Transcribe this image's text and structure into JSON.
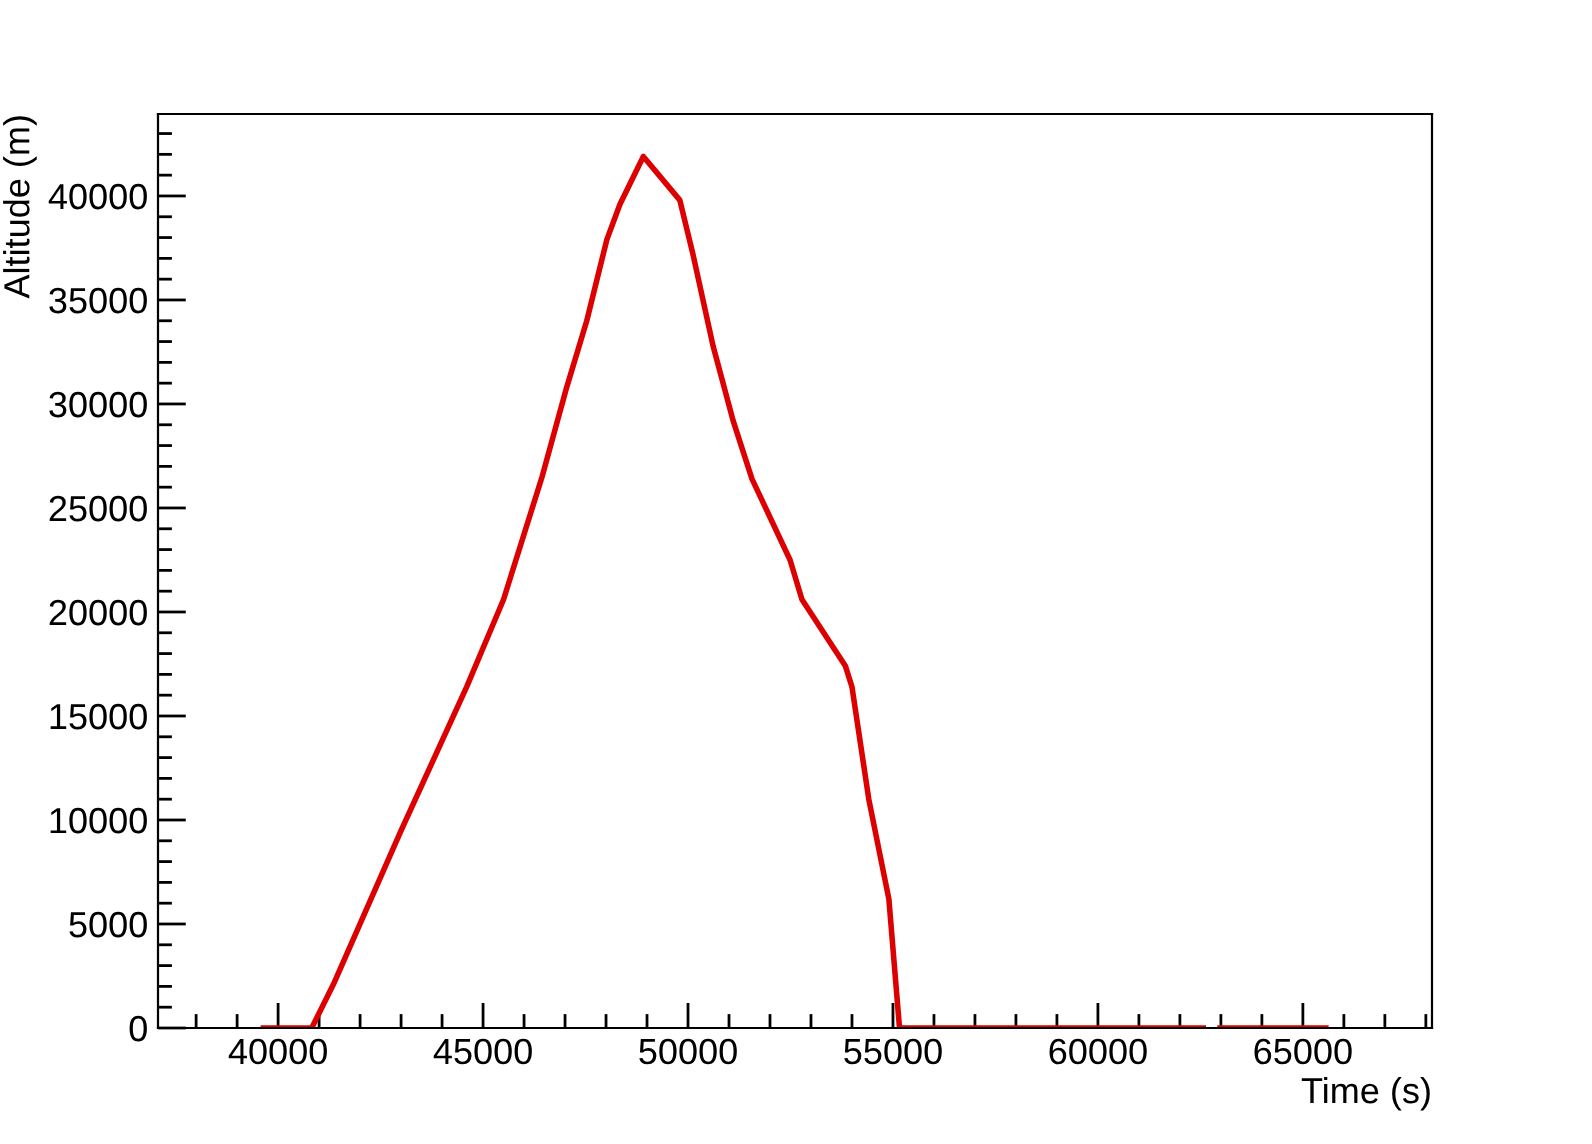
{
  "chart_data": {
    "type": "line",
    "xlabel": "Time (s)",
    "ylabel": "Altitude (m)",
    "x": [
      39640,
      40820,
      41350,
      42980,
      44600,
      45500,
      46440,
      47040,
      47530,
      48020,
      48340,
      48910,
      49800,
      50120,
      50610,
      51100,
      51560,
      52490,
      52780,
      53840,
      54000,
      54410,
      54900,
      55160,
      62570,
      62700,
      62980,
      65560
    ],
    "series": [
      {
        "color": "#dd0000",
        "values": [
          0,
          0,
          2100,
          9400,
          16400,
          20600,
          26500,
          30800,
          34000,
          37900,
          39600,
          41900,
          39800,
          37200,
          32800,
          29200,
          26400,
          22500,
          20600,
          17400,
          16400,
          11000,
          6200,
          0,
          0,
          null,
          0,
          0
        ]
      }
    ],
    "xlim": [
      37070,
      68150
    ],
    "ylim": [
      0,
      43940
    ],
    "xticks": [
      {
        "value": 38000,
        "label": null
      },
      {
        "value": 39000,
        "label": null
      },
      40000,
      {
        "value": 41000,
        "label": null
      },
      {
        "value": 42000,
        "label": null
      },
      {
        "value": 43000,
        "label": null
      },
      {
        "value": 44000,
        "label": null
      },
      45000,
      {
        "value": 46000,
        "label": null
      },
      {
        "value": 47000,
        "label": null
      },
      {
        "value": 48000,
        "label": null
      },
      {
        "value": 49000,
        "label": null
      },
      50000,
      {
        "value": 51000,
        "label": null
      },
      {
        "value": 52000,
        "label": null
      },
      {
        "value": 53000,
        "label": null
      },
      {
        "value": 54000,
        "label": null
      },
      55000,
      {
        "value": 56000,
        "label": null
      },
      {
        "value": 57000,
        "label": null
      },
      {
        "value": 58000,
        "label": null
      },
      {
        "value": 59000,
        "label": null
      },
      60000,
      {
        "value": 61000,
        "label": null
      },
      {
        "value": 62000,
        "label": null
      },
      {
        "value": 63000,
        "label": null
      },
      {
        "value": 64000,
        "label": null
      },
      65000,
      {
        "value": 66000,
        "label": null
      },
      {
        "value": 67000,
        "label": null
      },
      {
        "value": 68000,
        "label": null
      }
    ],
    "yticks": [
      0,
      {
        "value": 1000,
        "label": null
      },
      {
        "value": 2000,
        "label": null
      },
      {
        "value": 3000,
        "label": null
      },
      {
        "value": 4000,
        "label": null
      },
      5000,
      {
        "value": 6000,
        "label": null
      },
      {
        "value": 7000,
        "label": null
      },
      {
        "value": 8000,
        "label": null
      },
      {
        "value": 9000,
        "label": null
      },
      10000,
      {
        "value": 11000,
        "label": null
      },
      {
        "value": 12000,
        "label": null
      },
      {
        "value": 13000,
        "label": null
      },
      {
        "value": 14000,
        "label": null
      },
      15000,
      {
        "value": 16000,
        "label": null
      },
      {
        "value": 17000,
        "label": null
      },
      {
        "value": 18000,
        "label": null
      },
      {
        "value": 19000,
        "label": null
      },
      20000,
      {
        "value": 21000,
        "label": null
      },
      {
        "value": 22000,
        "label": null
      },
      {
        "value": 23000,
        "label": null
      },
      {
        "value": 24000,
        "label": null
      },
      25000,
      {
        "value": 26000,
        "label": null
      },
      {
        "value": 27000,
        "label": null
      },
      {
        "value": 28000,
        "label": null
      },
      {
        "value": 29000,
        "label": null
      },
      30000,
      {
        "value": 31000,
        "label": null
      },
      {
        "value": 32000,
        "label": null
      },
      {
        "value": 33000,
        "label": null
      },
      {
        "value": 34000,
        "label": null
      },
      35000,
      {
        "value": 36000,
        "label": null
      },
      {
        "value": 37000,
        "label": null
      },
      {
        "value": 38000,
        "label": null
      },
      {
        "value": 39000,
        "label": null
      },
      40000,
      {
        "value": 41000,
        "label": null
      },
      {
        "value": 42000,
        "label": null
      },
      {
        "value": 43000,
        "label": null
      }
    ],
    "grid": false,
    "legend": false,
    "marker": "none",
    "line_style": "solid"
  }
}
